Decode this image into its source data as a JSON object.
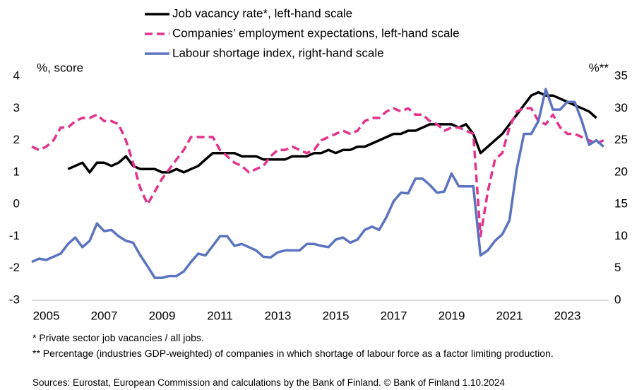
{
  "chart_data": {
    "type": "line",
    "y_label": "%, score",
    "y2_label": "%**",
    "x": [
      2005,
      2005.25,
      2005.5,
      2005.75,
      2006,
      2006.25,
      2006.5,
      2006.75,
      2007,
      2007.25,
      2007.5,
      2007.75,
      2008,
      2008.25,
      2008.5,
      2008.75,
      2009,
      2009.25,
      2009.5,
      2009.75,
      2010,
      2010.25,
      2010.5,
      2010.75,
      2011,
      2011.25,
      2011.5,
      2011.75,
      2012,
      2012.25,
      2012.5,
      2012.75,
      2013,
      2013.25,
      2013.5,
      2013.75,
      2014,
      2014.25,
      2014.5,
      2014.75,
      2015,
      2015.25,
      2015.5,
      2015.75,
      2016,
      2016.25,
      2016.5,
      2016.75,
      2017,
      2017.25,
      2017.5,
      2017.75,
      2018,
      2018.25,
      2018.5,
      2018.75,
      2019,
      2019.25,
      2019.5,
      2019.75,
      2020,
      2020.25,
      2020.5,
      2020.75,
      2021,
      2021.25,
      2021.5,
      2021.75,
      2022,
      2022.25,
      2022.5,
      2022.75,
      2023,
      2023.25,
      2023.5,
      2023.75,
      2024,
      2024.25,
      2024.5,
      2024.75
    ],
    "series": [
      {
        "name": "Job vacancy rate*, left-hand scale",
        "color": "#000000",
        "dash": false,
        "values": [
          null,
          null,
          null,
          null,
          null,
          1.1,
          1.2,
          1.3,
          1.0,
          1.3,
          1.3,
          1.2,
          1.3,
          1.5,
          1.2,
          1.1,
          1.1,
          1.1,
          1.0,
          1.0,
          1.1,
          1.0,
          1.1,
          1.2,
          1.4,
          1.6,
          1.6,
          1.6,
          1.6,
          1.5,
          1.5,
          1.5,
          1.4,
          1.4,
          1.4,
          1.4,
          1.5,
          1.5,
          1.5,
          1.6,
          1.6,
          1.7,
          1.6,
          1.7,
          1.7,
          1.8,
          1.8,
          1.9,
          2.0,
          2.1,
          2.2,
          2.2,
          2.3,
          2.3,
          2.4,
          2.5,
          2.5,
          2.5,
          2.5,
          2.4,
          2.5,
          2.2,
          1.6,
          1.8,
          2.0,
          2.2,
          2.5,
          2.8,
          3.1,
          3.4,
          3.5,
          3.4,
          3.4,
          3.3,
          3.2,
          3.1,
          3.0,
          2.9,
          2.7,
          null
        ]
      },
      {
        "name": "Companies’ employment expectations, left-hand scale",
        "color": "#e2348a",
        "dash": true,
        "values": [
          1.8,
          1.7,
          1.8,
          2.0,
          2.4,
          2.4,
          2.6,
          2.7,
          2.7,
          2.8,
          2.6,
          2.6,
          2.5,
          2.0,
          1.3,
          0.5,
          0.0,
          0.4,
          0.8,
          1.1,
          1.4,
          1.7,
          2.1,
          2.1,
          2.1,
          2.1,
          1.7,
          1.5,
          1.3,
          1.2,
          1.0,
          1.1,
          1.2,
          1.5,
          1.7,
          1.7,
          1.8,
          1.7,
          1.6,
          1.7,
          2.0,
          2.1,
          2.2,
          2.3,
          2.2,
          2.3,
          2.6,
          2.7,
          2.7,
          2.9,
          3.0,
          2.9,
          3.0,
          2.8,
          2.8,
          2.6,
          2.5,
          2.3,
          2.4,
          2.4,
          2.3,
          2.2,
          -1.0,
          0.4,
          1.4,
          1.6,
          2.4,
          2.9,
          3.0,
          3.0,
          2.6,
          2.5,
          2.8,
          2.4,
          2.2,
          2.2,
          2.1,
          2.0,
          1.9,
          2.0
        ]
      },
      {
        "name": "Labour shortage index, right-hand scale",
        "color": "#5b73c0",
        "dash": false,
        "axis": "y2",
        "values": [
          6.0,
          6.5,
          6.3,
          6.8,
          7.3,
          8.8,
          9.8,
          8.3,
          9.3,
          12.0,
          10.8,
          11.0,
          10.0,
          9.3,
          9.0,
          7.0,
          5.3,
          3.5,
          3.5,
          3.8,
          3.8,
          4.5,
          6.0,
          7.3,
          7.0,
          8.5,
          10.0,
          10.0,
          8.5,
          8.8,
          8.3,
          7.8,
          6.8,
          6.7,
          7.5,
          7.8,
          7.8,
          7.8,
          8.8,
          8.8,
          8.5,
          8.3,
          9.5,
          9.8,
          9.0,
          9.5,
          11.0,
          11.5,
          11.0,
          13.0,
          15.5,
          16.8,
          16.7,
          19.0,
          19.0,
          18.0,
          16.8,
          17.0,
          19.8,
          17.8,
          17.8,
          17.8,
          7.0,
          7.8,
          9.3,
          10.3,
          12.5,
          20.5,
          26.0,
          26.0,
          28.0,
          33.0,
          29.8,
          29.8,
          31.0,
          31.0,
          28.0,
          24.3,
          25.0,
          24.0
        ]
      }
    ],
    "xlim": [
      2005,
      2025
    ],
    "xticks": [
      {
        "value": 2005.5,
        "label": "2005"
      },
      {
        "value": 2007.5,
        "label": "2007"
      },
      {
        "value": 2009.5,
        "label": "2009"
      },
      {
        "value": 2011.5,
        "label": "2011"
      },
      {
        "value": 2013.5,
        "label": "2013"
      },
      {
        "value": 2015.5,
        "label": "2015"
      },
      {
        "value": 2017.5,
        "label": "2017"
      },
      {
        "value": 2019.5,
        "label": "2019"
      },
      {
        "value": 2021.5,
        "label": "2021"
      },
      {
        "value": 2023.5,
        "label": "2023"
      }
    ],
    "ylim": [
      -3,
      4
    ],
    "yticks": [
      -3,
      -2,
      -1,
      0,
      1,
      2,
      3,
      4
    ],
    "y2lim": [
      0,
      35
    ],
    "y2ticks": [
      0,
      5,
      10,
      15,
      20,
      25,
      30,
      35
    ],
    "grid": false,
    "footnotes": [
      "* Private sector job vacancies / all jobs.",
      "** Percentage (industries GDP-weighted) of companies in which shortage of labour force as a factor limiting production.",
      "Sources: Eurostat, European Commission and calculations by the Bank of Finland.  © Bank of Finland 1.10.2024"
    ]
  }
}
